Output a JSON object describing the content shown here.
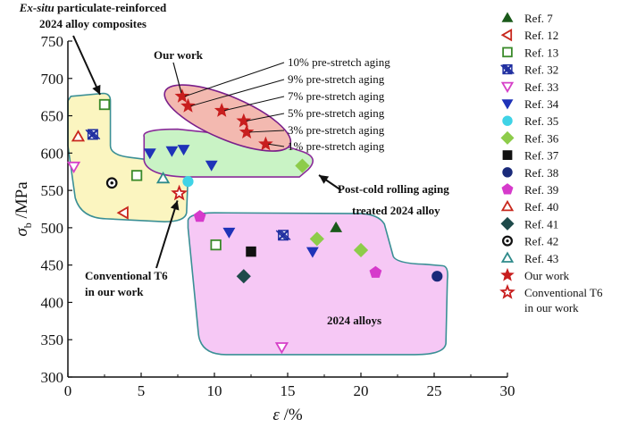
{
  "chart_data": {
    "type": "scatter",
    "xlabel": "ε /%",
    "ylabel": "σb /MPa",
    "ylabel_symbol": "σ",
    "ylabel_sub": "b",
    "ylabel_unit": " /MPa",
    "xlabel_symbol": "ε",
    "xlabel_unit": " /%",
    "xlim": [
      0,
      30
    ],
    "ylim": [
      300,
      750
    ],
    "xticks": [
      "0",
      "5",
      "10",
      "15",
      "20",
      "25",
      "30"
    ],
    "yticks": [
      "300",
      "350",
      "400",
      "450",
      "500",
      "550",
      "600",
      "650",
      "700",
      "750"
    ],
    "legend_position": "right",
    "regions": [
      {
        "label_italic": "Ex-situ",
        "label_rest": " particulate-reinforced",
        "label_line2": "2024 alloy composites",
        "color": "#fbf5c0"
      },
      {
        "label_line1": "Post-cold rolling aging",
        "label_line2": "treated 2024 alloy",
        "color": "#c9f3c5"
      },
      {
        "label": "Our work",
        "color": "#f3b9b0"
      },
      {
        "label": "2024 alloys",
        "color": "#f6c8f5"
      }
    ],
    "annotations": {
      "conventional_line1": "Conventional T6",
      "conventional_line2": "in our work",
      "pre_stretch": [
        "10% pre-stretch aging",
        "9% pre-stretch aging",
        "7% pre-stretch aging",
        "5% pre-stretch aging",
        "3% pre-stretch aging",
        "1% pre-stretch aging"
      ]
    },
    "series": [
      {
        "name": "Ref. 7",
        "marker": "triangle",
        "color": "#1a5a1a",
        "filled": true,
        "points": [
          [
            18.3,
            500
          ]
        ]
      },
      {
        "name": "Ref. 12",
        "marker": "triangle-left",
        "color": "#c8281e",
        "filled": false,
        "points": [
          [
            3.8,
            520
          ]
        ]
      },
      {
        "name": "Ref. 13",
        "marker": "square",
        "color": "#3a8a2a",
        "filled": false,
        "points": [
          [
            2.5,
            665
          ],
          [
            4.7,
            570
          ],
          [
            10.1,
            477
          ]
        ]
      },
      {
        "name": "Ref. 32",
        "marker": "xsquare",
        "color": "#1f2ea0",
        "filled": true,
        "points": [
          [
            1.7,
            625
          ],
          [
            14.7,
            490
          ]
        ]
      },
      {
        "name": "Ref. 33",
        "marker": "triangle-down",
        "color": "#d640c8",
        "filled": false,
        "points": [
          [
            0.4,
            582
          ],
          [
            14.6,
            340
          ]
        ]
      },
      {
        "name": "Ref. 34",
        "marker": "triangle-down",
        "color": "#1f33b8",
        "filled": true,
        "points": [
          [
            5.6,
            600
          ],
          [
            7.1,
            603
          ],
          [
            7.9,
            605
          ],
          [
            9.8,
            584
          ],
          [
            11.0,
            494
          ],
          [
            16.7,
            468
          ]
        ]
      },
      {
        "name": "Ref. 35",
        "marker": "circle",
        "color": "#3fd3e6",
        "filled": true,
        "points": [
          [
            8.2,
            562
          ]
        ]
      },
      {
        "name": "Ref. 36",
        "marker": "diamond",
        "color": "#8dcc4a",
        "filled": true,
        "points": [
          [
            16.0,
            583
          ],
          [
            17.0,
            485
          ],
          [
            20.0,
            470
          ]
        ]
      },
      {
        "name": "Ref. 37",
        "marker": "square",
        "color": "#111111",
        "filled": true,
        "points": [
          [
            12.5,
            468
          ]
        ]
      },
      {
        "name": "Ref. 38",
        "marker": "circle",
        "color": "#1a2a7a",
        "filled": true,
        "points": [
          [
            25.2,
            435
          ]
        ]
      },
      {
        "name": "Ref. 39",
        "marker": "pentagon",
        "color": "#d63acb",
        "filled": true,
        "points": [
          [
            9.0,
            515
          ],
          [
            21.0,
            440
          ]
        ]
      },
      {
        "name": "Ref. 40",
        "marker": "triangle",
        "color": "#c8281e",
        "filled": false,
        "points": [
          [
            0.7,
            622
          ]
        ]
      },
      {
        "name": "Ref. 41",
        "marker": "diamond",
        "color": "#1e4a4a",
        "filled": true,
        "points": [
          [
            12.0,
            435
          ]
        ]
      },
      {
        "name": "Ref. 42",
        "marker": "circle-dot",
        "color": "#111111",
        "filled": false,
        "points": [
          [
            3.0,
            560
          ]
        ]
      },
      {
        "name": "Ref. 43",
        "marker": "triangle",
        "color": "#2e8a8a",
        "filled": false,
        "points": [
          [
            6.5,
            566
          ]
        ]
      },
      {
        "name": "Our work",
        "marker": "star",
        "color": "#c81e1e",
        "filled": true,
        "points": [
          [
            7.8,
            676
          ],
          [
            8.2,
            663
          ],
          [
            10.5,
            657
          ],
          [
            12.0,
            643
          ],
          [
            12.2,
            628
          ],
          [
            13.5,
            612
          ]
        ]
      },
      {
        "name": "Conventional T6",
        "name_line2": "in our work",
        "marker": "star",
        "color": "#c81e1e",
        "filled": false,
        "points": [
          [
            7.6,
            546
          ]
        ]
      }
    ]
  }
}
